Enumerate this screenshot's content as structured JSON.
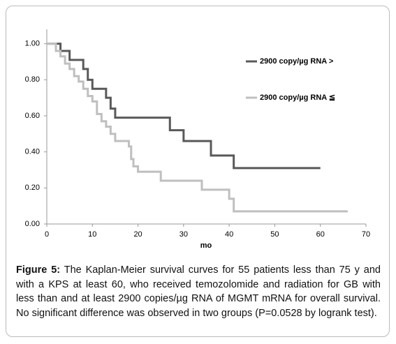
{
  "chart_data": {
    "type": "line",
    "step": true,
    "xlabel": "mo",
    "xlim": [
      0,
      70
    ],
    "xticks": [
      0,
      10,
      20,
      30,
      40,
      50,
      60,
      70
    ],
    "ylim": [
      0,
      1.08
    ],
    "yticks": [
      {
        "value": 0,
        "label": "0.00"
      },
      {
        "value": 0.2,
        "label": "0.20"
      },
      {
        "value": 0.4,
        "label": "0.40"
      },
      {
        "value": 0.6,
        "label": "0.60"
      },
      {
        "value": 0.8,
        "label": "0.80"
      },
      {
        "value": 1.0,
        "label": "1.00"
      }
    ],
    "legend": "right",
    "series": [
      {
        "name": "2900 copy/µg RNA >",
        "color": "#595959",
        "x": [
          0,
          3,
          5,
          8,
          9,
          10,
          13,
          14,
          15,
          27,
          30,
          36,
          41,
          60
        ],
        "values": [
          1.0,
          0.96,
          0.91,
          0.86,
          0.8,
          0.75,
          0.7,
          0.64,
          0.59,
          0.52,
          0.46,
          0.38,
          0.31,
          0.31
        ]
      },
      {
        "name": "2900 copy/µg RNA ≦",
        "color": "#bfbfbf",
        "x": [
          0,
          2,
          3,
          4,
          5,
          6,
          7,
          8,
          9,
          10,
          11,
          12,
          13,
          14,
          15,
          18,
          18.5,
          19,
          20,
          25,
          34,
          40,
          41,
          66
        ],
        "values": [
          1.0,
          0.96,
          0.93,
          0.89,
          0.86,
          0.82,
          0.79,
          0.75,
          0.71,
          0.68,
          0.61,
          0.57,
          0.54,
          0.5,
          0.46,
          0.43,
          0.36,
          0.32,
          0.29,
          0.24,
          0.19,
          0.14,
          0.07,
          0.07
        ]
      }
    ],
    "caption_label": "Figure 5:",
    "caption": "The Kaplan-Meier survival curves for 55 patients less than 75 y and with a KPS at least 60, who received temozolomide and radiation for GB with less than and at least 2900 copies/µg RNA of MGMT mRNA for overall survival. No significant difference was observed in two groups (P=0.0528 by logrank test)."
  }
}
